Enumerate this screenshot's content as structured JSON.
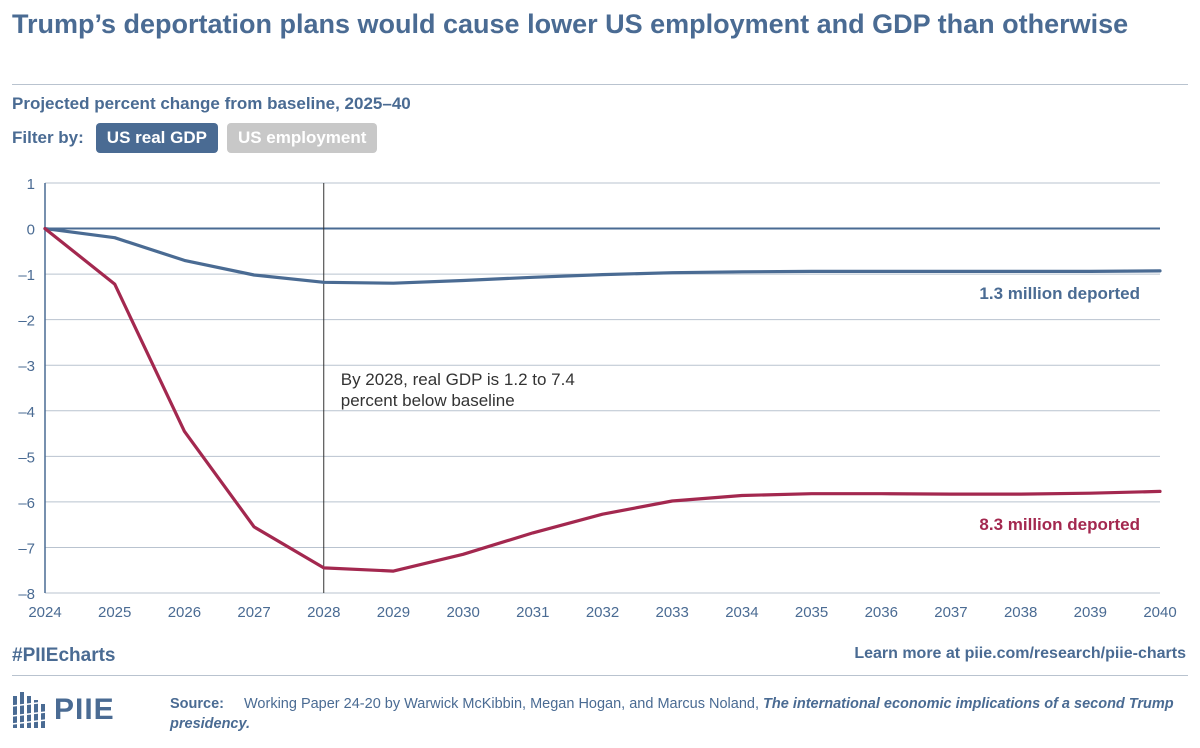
{
  "title": "Trump’s deportation plans would cause lower US employment and GDP than otherwise",
  "subtitle": "Projected percent change from baseline, 2025–40",
  "filter": {
    "label": "Filter by:",
    "options": [
      "US real GDP",
      "US employment"
    ],
    "selected": "US real GDP"
  },
  "colors": {
    "brand": "#4a6b93",
    "low_scenario": "#4a6b93",
    "high_scenario": "#a3284f",
    "grid": "#b9c3cf",
    "inactive_button": "#c8c8c8"
  },
  "chart_data": {
    "type": "line",
    "title": "",
    "xlabel": "",
    "ylabel": "",
    "x": [
      2024,
      2025,
      2026,
      2027,
      2028,
      2029,
      2030,
      2031,
      2032,
      2033,
      2034,
      2035,
      2036,
      2037,
      2038,
      2039,
      2040
    ],
    "x_tick_labels": [
      "2024",
      "2025",
      "2026",
      "2027",
      "2028",
      "2029",
      "2030",
      "2031",
      "2032",
      "2033",
      "2034",
      "2035",
      "2036",
      "2037",
      "2038",
      "2039",
      "2040"
    ],
    "xlim": [
      2024,
      2040
    ],
    "ylim": [
      -8,
      1
    ],
    "y_ticks": [
      1,
      0,
      -1,
      -2,
      -3,
      -4,
      -5,
      -6,
      -7,
      -8
    ],
    "y_tick_labels": [
      "1",
      "0",
      "–1",
      "–2",
      "–3",
      "–4",
      "–5",
      "–6",
      "–7",
      "–8"
    ],
    "grid": true,
    "series": [
      {
        "name": "1.3 million deported",
        "color": "#4a6b93",
        "values": [
          0,
          -0.2,
          -0.7,
          -1.02,
          -1.18,
          -1.2,
          -1.14,
          -1.07,
          -1.01,
          -0.97,
          -0.95,
          -0.94,
          -0.94,
          -0.94,
          -0.94,
          -0.94,
          -0.93
        ]
      },
      {
        "name": "8.3 million deported",
        "color": "#a3284f",
        "values": [
          0,
          -1.22,
          -4.45,
          -6.55,
          -7.45,
          -7.52,
          -7.15,
          -6.68,
          -6.27,
          -5.98,
          -5.86,
          -5.82,
          -5.82,
          -5.83,
          -5.83,
          -5.81,
          -5.77
        ]
      }
    ],
    "annotations": [
      {
        "text_lines": [
          "By 2028, real GDP is 1.2 to 7.4",
          "percent below baseline"
        ],
        "x": 2028
      }
    ]
  },
  "footer": {
    "hashtag": "#PIIEcharts",
    "learn_more": "Learn more at piie.com/research/piie-charts",
    "logo_text": "PIIE",
    "source_label": "Source:",
    "source_text": "Working Paper 24-20 by Warwick McKibbin, Megan Hogan, and Marcus Noland, ",
    "source_title": "The international economic implications of a second Trump presidency."
  }
}
